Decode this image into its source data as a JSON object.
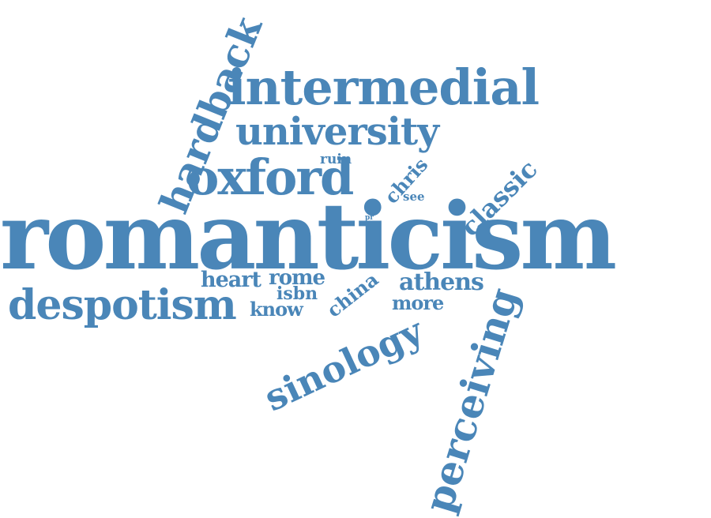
{
  "word_cloud": {
    "color": "#4a86b8",
    "words": {
      "romanticism": "romanticism",
      "intermedial": "intermedial",
      "university": "university",
      "oxford": "oxford",
      "hardback": "hardback",
      "despotism": "despotism",
      "sinology": "sinology",
      "perceiving": "perceiving",
      "classic": "classic",
      "chris": "chris",
      "ruin": "ruin",
      "see": "see",
      "pr": "pr",
      "heart": "heart",
      "rome": "rome",
      "isbn": "isbn",
      "know": "know",
      "china": "china",
      "athens": "athens",
      "more": "more"
    }
  }
}
